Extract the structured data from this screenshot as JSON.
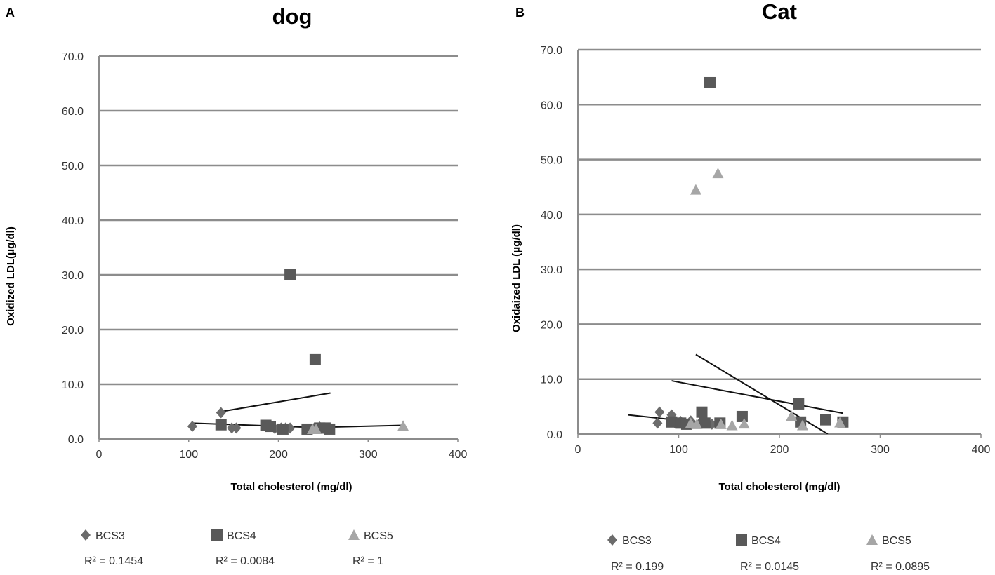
{
  "chart_data": [
    {
      "panel_label": "A",
      "type": "scatter",
      "title": "dog",
      "xlabel": "Total cholesterol (mg/dl)",
      "ylabel": "Oxidized LDL(μg/dl)",
      "xlim": [
        0,
        400
      ],
      "ylim": [
        0,
        70
      ],
      "x_ticks": [
        "0",
        "100",
        "200",
        "300",
        "400"
      ],
      "y_ticks": [
        "0.0",
        "10.0",
        "20.0",
        "30.0",
        "40.0",
        "50.0",
        "60.0",
        "70.0"
      ],
      "grid": "horizontal",
      "legend_position": "bottom",
      "series": [
        {
          "name": "BCS3",
          "marker": "diamond",
          "color": "#6b6b6b",
          "r2": "R² = 0.1454",
          "points": [
            [
              104,
              2.3
            ],
            [
              136,
              4.8
            ],
            [
              148,
              2.0
            ],
            [
              153,
              2.0
            ],
            [
              196,
              1.9
            ],
            [
              203,
              2.0
            ],
            [
              208,
              2.0
            ],
            [
              213,
              2.0
            ],
            [
              240,
              2.0
            ],
            [
              246,
              2.2
            ],
            [
              250,
              2.0
            ]
          ],
          "trend": [
            [
              136,
              5.0
            ],
            [
              258,
              8.4
            ]
          ]
        },
        {
          "name": "BCS4",
          "marker": "square",
          "color": "#595959",
          "r2": "R² = 0.0084",
          "points": [
            [
              136,
              2.6
            ],
            [
              186,
              2.5
            ],
            [
              191,
              2.3
            ],
            [
              205,
              1.8
            ],
            [
              213,
              30.0
            ],
            [
              232,
              1.8
            ],
            [
              241,
              14.5
            ],
            [
              246,
              2.0
            ],
            [
              252,
              2.0
            ],
            [
              257,
              1.8
            ]
          ],
          "trend": [
            [
              104,
              2.9
            ],
            [
              258,
              2.0
            ]
          ]
        },
        {
          "name": "BCS5",
          "marker": "triangle",
          "color": "#a6a6a6",
          "r2": "R² = 1",
          "points": [
            [
              238,
              1.8
            ],
            [
              242,
              1.8
            ],
            [
              339,
              2.4
            ]
          ],
          "trend": [
            [
              238,
              2.1
            ],
            [
              339,
              2.5
            ]
          ]
        }
      ]
    },
    {
      "panel_label": "B",
      "type": "scatter",
      "title": "Cat",
      "xlabel": "Total cholesterol (mg/dl)",
      "ylabel": "Oxidaized LDL (μg/dl)",
      "xlim": [
        0,
        400
      ],
      "ylim": [
        0,
        70
      ],
      "x_ticks": [
        "0",
        "100",
        "200",
        "300",
        "400"
      ],
      "y_ticks": [
        "0.0",
        "10.0",
        "20.0",
        "30.0",
        "40.0",
        "50.0",
        "60.0",
        "70.0"
      ],
      "grid": "horizontal",
      "legend_position": "bottom",
      "series": [
        {
          "name": "BCS3",
          "marker": "diamond",
          "color": "#6b6b6b",
          "r2": "R² = 0.199",
          "points": [
            [
              79,
              2.0
            ],
            [
              81,
              4.0
            ],
            [
              93,
              3.5
            ],
            [
              96,
              2.1
            ],
            [
              102,
              2.3
            ],
            [
              112,
              2.4
            ],
            [
              122,
              2.2
            ],
            [
              133,
              1.8
            ]
          ],
          "trend": [
            [
              50,
              3.5
            ],
            [
              136,
              1.8
            ]
          ]
        },
        {
          "name": "BCS4",
          "marker": "square",
          "color": "#595959",
          "r2": "R² = 0.0145",
          "points": [
            [
              93,
              2.2
            ],
            [
              102,
              2.0
            ],
            [
              108,
              1.8
            ],
            [
              123,
              4.0
            ],
            [
              126,
              2.0
            ],
            [
              131,
              64.0
            ],
            [
              141,
              2.0
            ],
            [
              163,
              3.2
            ],
            [
              219,
              5.5
            ],
            [
              221,
              2.2
            ],
            [
              246,
              2.6
            ],
            [
              263,
              2.2
            ]
          ],
          "trend": [
            [
              93,
              9.7
            ],
            [
              263,
              3.8
            ]
          ]
        },
        {
          "name": "BCS5",
          "marker": "triangle",
          "color": "#a6a6a6",
          "r2": "R² = 0.0895",
          "points": [
            [
              112,
              2.0
            ],
            [
              117,
              44.5
            ],
            [
              118,
              1.8
            ],
            [
              139,
              47.5
            ],
            [
              142,
              1.8
            ],
            [
              153,
              1.6
            ],
            [
              165,
              1.9
            ],
            [
              212,
              3.3
            ],
            [
              223,
              1.6
            ],
            [
              260,
              2.1
            ]
          ],
          "trend": [
            [
              117,
              14.5
            ],
            [
              248,
              0.0
            ]
          ]
        }
      ]
    }
  ]
}
